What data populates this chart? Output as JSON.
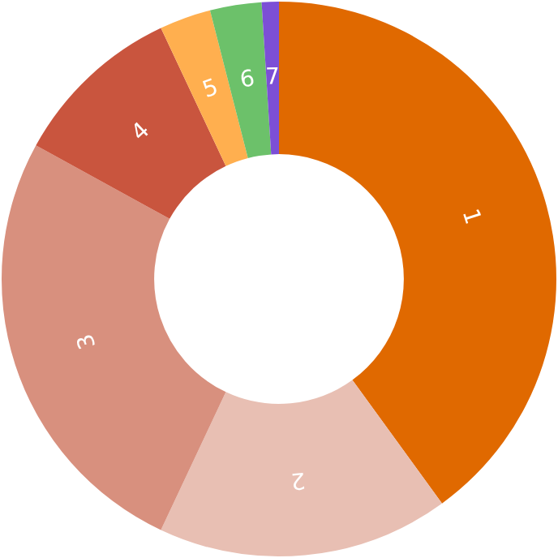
{
  "chart_data": {
    "type": "donut",
    "categories": [
      "1",
      "2",
      "3",
      "4",
      "5",
      "6",
      "7"
    ],
    "values": [
      40,
      17,
      26,
      10,
      3,
      3,
      1
    ],
    "colors": [
      "#e06900",
      "#e8bfb3",
      "#d8907e",
      "#c9553e",
      "#ffaf4f",
      "#6cc16a",
      "#7c4fd6"
    ],
    "legend": false
  }
}
